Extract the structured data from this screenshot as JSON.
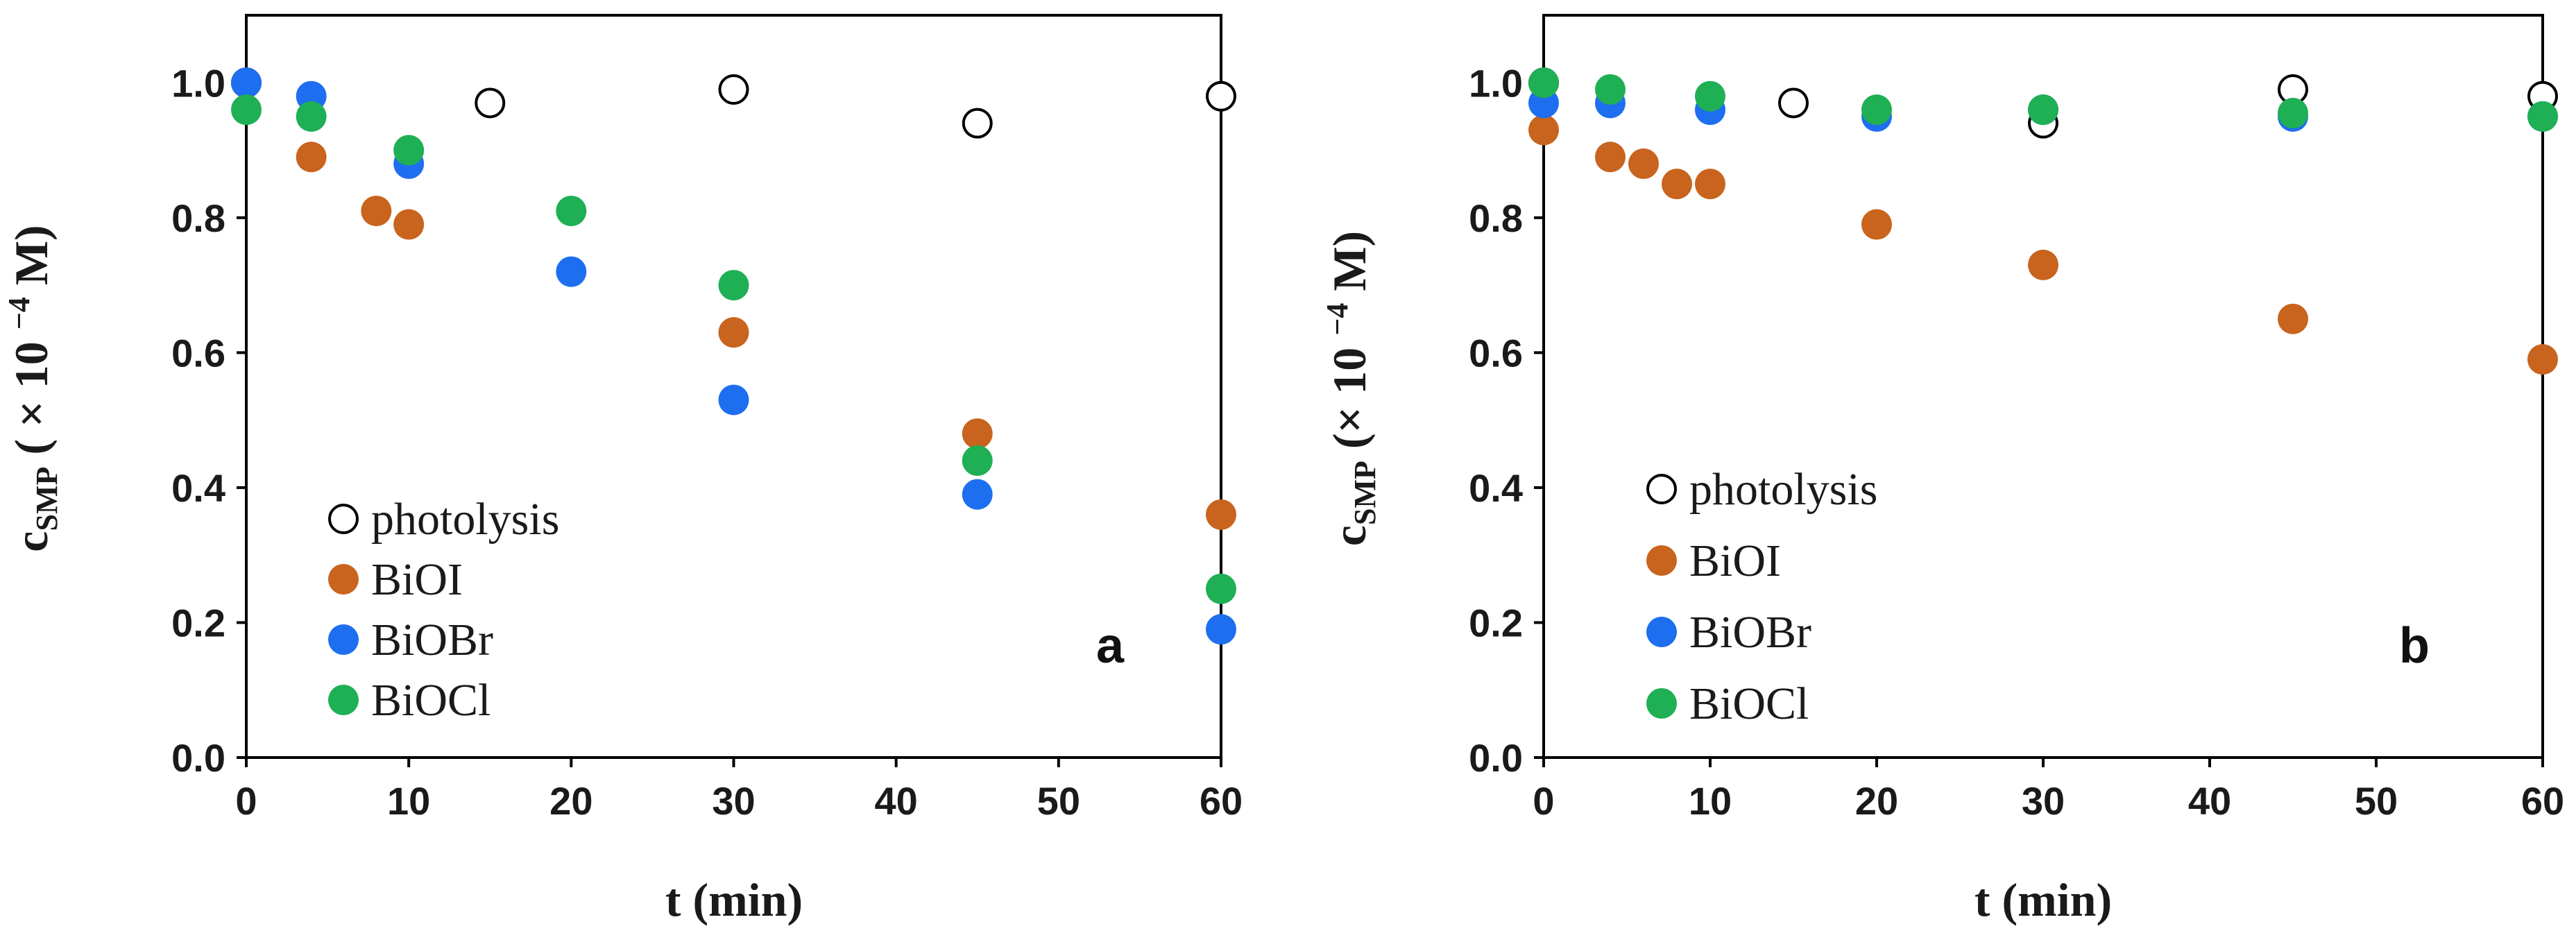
{
  "chart_data": [
    {
      "type": "scatter",
      "panel_label": "a",
      "xlabel": "t (min)",
      "ylabel": {
        "main": "c",
        "sub": "SMP",
        "rest1": " ( × 10 ",
        "sup": "−4",
        "rest2": " M)"
      },
      "xlim": [
        0,
        60
      ],
      "ylim": [
        0,
        1.1
      ],
      "xticks": [
        0,
        10,
        20,
        30,
        40,
        50,
        60
      ],
      "xtick_labels": [
        "0",
        "10",
        "20",
        "30",
        "40",
        "50",
        "60"
      ],
      "yticks": [
        0,
        0.2,
        0.4,
        0.6,
        0.8,
        1.0
      ],
      "ytick_labels": [
        "0.0",
        "0.2",
        "0.4",
        "0.6",
        "0.8",
        "1.0"
      ],
      "legend_position": "bottom-left",
      "series": [
        {
          "name": "photolysis",
          "marker": "open-circle",
          "color": "#000000",
          "x": [
            0,
            15,
            30,
            45,
            60
          ],
          "y": [
            1.0,
            0.97,
            0.99,
            0.94,
            0.98
          ]
        },
        {
          "name": "BiOI",
          "marker": "filled-circle",
          "color": "#C8641E",
          "x": [
            0,
            4,
            8,
            10,
            30,
            45,
            60
          ],
          "y": [
            1.0,
            0.89,
            0.81,
            0.79,
            0.63,
            0.48,
            0.36
          ]
        },
        {
          "name": "BiOBr",
          "marker": "filled-circle",
          "color": "#1E6EF0",
          "x": [
            0,
            4,
            10,
            20,
            30,
            45,
            60
          ],
          "y": [
            1.0,
            0.98,
            0.88,
            0.72,
            0.53,
            0.39,
            0.19
          ]
        },
        {
          "name": "BiOCl",
          "marker": "filled-circle",
          "color": "#1FAF55",
          "x": [
            0,
            4,
            10,
            20,
            30,
            45,
            60
          ],
          "y": [
            0.96,
            0.95,
            0.9,
            0.81,
            0.7,
            0.44,
            0.25
          ]
        }
      ]
    },
    {
      "type": "scatter",
      "panel_label": "b",
      "xlabel": "t (min)",
      "ylabel": {
        "main": "c",
        "sub": "SMP",
        "rest1": " (× 10 ",
        "sup": "−4",
        "rest2": " M)"
      },
      "xlim": [
        0,
        60
      ],
      "ylim": [
        0,
        1.1
      ],
      "xticks": [
        0,
        10,
        20,
        30,
        40,
        50,
        60
      ],
      "xtick_labels": [
        "0",
        "10",
        "20",
        "30",
        "40",
        "50",
        "60"
      ],
      "yticks": [
        0,
        0.2,
        0.4,
        0.6,
        0.8,
        1.0
      ],
      "ytick_labels": [
        "0.0",
        "0.2",
        "0.4",
        "0.6",
        "0.8",
        "1.0"
      ],
      "legend_position": "bottom-left",
      "series": [
        {
          "name": "photolysis",
          "marker": "open-circle",
          "color": "#000000",
          "x": [
            0,
            15,
            30,
            45,
            60
          ],
          "y": [
            1.0,
            0.97,
            0.94,
            0.99,
            0.98
          ]
        },
        {
          "name": "BiOI",
          "marker": "filled-circle",
          "color": "#C8641E",
          "x": [
            0,
            4,
            6,
            8,
            10,
            20,
            30,
            45,
            60
          ],
          "y": [
            0.93,
            0.89,
            0.88,
            0.85,
            0.85,
            0.79,
            0.73,
            0.65,
            0.59
          ]
        },
        {
          "name": "BiOBr",
          "marker": "filled-circle",
          "color": "#1E6EF0",
          "x": [
            0,
            4,
            10,
            20,
            30,
            45,
            60
          ],
          "y": [
            0.97,
            0.97,
            0.96,
            0.95,
            0.96,
            0.95,
            0.95
          ]
        },
        {
          "name": "BiOCl",
          "marker": "filled-circle",
          "color": "#1FAF55",
          "x": [
            0,
            4,
            10,
            20,
            30,
            45,
            60
          ],
          "y": [
            1.0,
            0.99,
            0.98,
            0.96,
            0.96,
            0.955,
            0.95
          ]
        }
      ]
    }
  ]
}
